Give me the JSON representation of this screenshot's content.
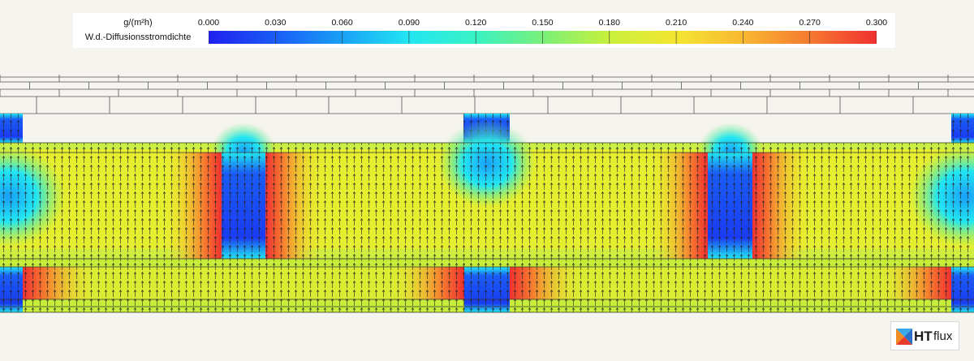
{
  "legend": {
    "unit": "g/(m²h)",
    "quantity": "W.d.-Diffusionsstromdichte",
    "ticks": [
      "0.000",
      "0.030",
      "0.060",
      "0.090",
      "0.120",
      "0.150",
      "0.180",
      "0.210",
      "0.240",
      "0.270",
      "0.300"
    ],
    "min": 0.0,
    "max": 0.3,
    "colors": [
      "#2020f0",
      "#1a5cf5",
      "#19a0f7",
      "#22e6f2",
      "#38f2c4",
      "#7af07a",
      "#c8f03c",
      "#f4e632",
      "#f8b832",
      "#f67a30",
      "#f03030"
    ]
  },
  "plot": {
    "background": "#f5f4ee",
    "masonry_line_color": "#555555",
    "arrow_color": "#222222"
  },
  "logo": {
    "brand_ht": "HT",
    "brand_flux": "flux"
  }
}
